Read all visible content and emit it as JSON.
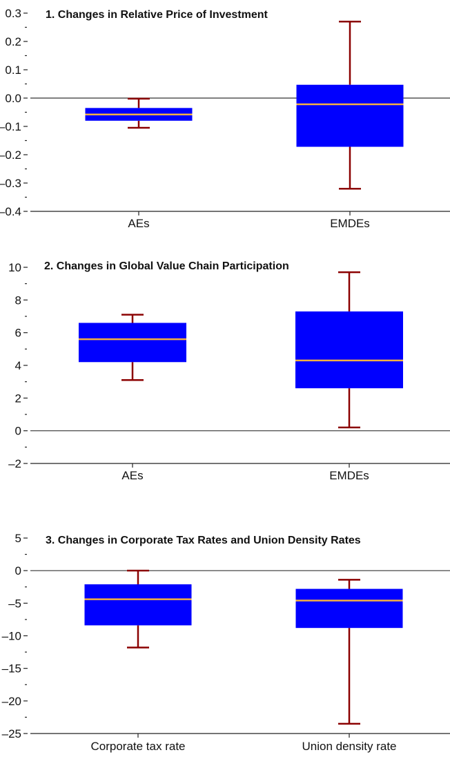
{
  "colors": {
    "box": "#0000ff",
    "median": "#f5b041",
    "whisker": "#8b0000"
  },
  "chart_data": [
    {
      "type": "box",
      "title": "1. Changes in Relative Price of Investment",
      "ylim": [
        -0.4,
        0.3
      ],
      "major_ticks": [
        -0.4,
        -0.3,
        -0.2,
        -0.1,
        0.0,
        0.1,
        0.2,
        0.3
      ],
      "tick_labels": [
        "–0.4",
        "–0.3",
        "–0.2",
        "–0.1",
        "0.0",
        "0.1",
        "0.2",
        "0.3"
      ],
      "zero_line": 0,
      "categories": [
        "AEs",
        "EMDEs"
      ],
      "boxes": [
        {
          "whisker_low": -0.105,
          "q1": -0.08,
          "median": -0.058,
          "q3": -0.035,
          "whisker_high": -0.002
        },
        {
          "whisker_low": -0.32,
          "q1": -0.172,
          "median": -0.022,
          "q3": 0.047,
          "whisker_high": 0.27
        }
      ]
    },
    {
      "type": "box",
      "title": "2. Changes in Global Value Chain Participation",
      "ylim": [
        -2,
        10
      ],
      "major_ticks": [
        -2,
        0,
        2,
        4,
        6,
        8,
        10
      ],
      "tick_labels": [
        "–2",
        "0",
        "2",
        "4",
        "6",
        "8",
        "10"
      ],
      "zero_line": 0,
      "categories": [
        "AEs",
        "EMDEs"
      ],
      "boxes": [
        {
          "whisker_low": 3.1,
          "q1": 4.2,
          "median": 5.6,
          "q3": 6.6,
          "whisker_high": 7.1
        },
        {
          "whisker_low": 0.2,
          "q1": 2.6,
          "median": 4.3,
          "q3": 7.3,
          "whisker_high": 9.7
        }
      ]
    },
    {
      "type": "box",
      "title": "3. Changes in Corporate Tax Rates and Union Density Rates",
      "ylim": [
        -25,
        5
      ],
      "major_ticks": [
        -25,
        -20,
        -15,
        -10,
        -5,
        0,
        5
      ],
      "tick_labels": [
        "–25",
        "–20",
        "–15",
        "–10",
        "–5",
        "0",
        "5"
      ],
      "zero_line": 0,
      "categories": [
        "Corporate tax rate",
        "Union density rate"
      ],
      "boxes": [
        {
          "whisker_low": -11.8,
          "q1": -8.4,
          "median": -4.4,
          "q3": -2.1,
          "whisker_high": 0.0
        },
        {
          "whisker_low": -23.5,
          "q1": -8.8,
          "median": -4.6,
          "q3": -2.8,
          "whisker_high": -1.4
        }
      ]
    }
  ]
}
